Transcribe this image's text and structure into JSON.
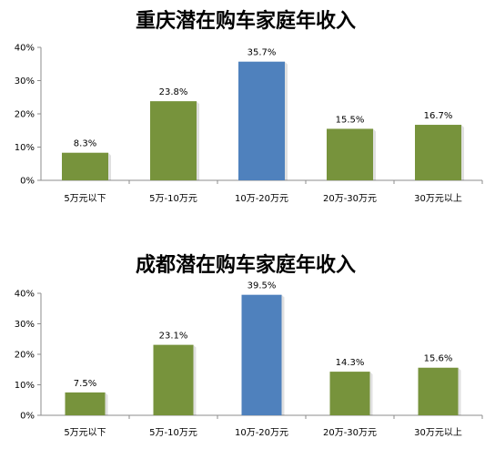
{
  "colors": {
    "green": "#77933c",
    "blue": "#4f81bd"
  },
  "chart_data": [
    {
      "type": "bar",
      "title": "重庆潜在购车家庭年收入",
      "categories": [
        "5万元以下",
        "5万-10万元",
        "10万-20万元",
        "20万-30万元",
        "30万元以上"
      ],
      "values": [
        8.3,
        23.8,
        35.7,
        15.5,
        16.7
      ],
      "data_labels": [
        "8.3%",
        "23.8%",
        "35.7%",
        "15.5%",
        "16.7%"
      ],
      "highlight_index": 2,
      "ylim": [
        0,
        40
      ],
      "yticks": [
        "0%",
        "10%",
        "20%",
        "30%",
        "40%"
      ],
      "xlabel": "",
      "ylabel": "",
      "grid": false
    },
    {
      "type": "bar",
      "title": "成都潜在购车家庭年收入",
      "categories": [
        "5万元以下",
        "5万-10万元",
        "10万-20万元",
        "20万-30万元",
        "30万元以上"
      ],
      "values": [
        7.5,
        23.1,
        39.5,
        14.3,
        15.6
      ],
      "data_labels": [
        "7.5%",
        "23.1%",
        "39.5%",
        "14.3%",
        "15.6%"
      ],
      "highlight_index": 2,
      "ylim": [
        0,
        40
      ],
      "yticks": [
        "0%",
        "10%",
        "20%",
        "30%",
        "40%"
      ],
      "xlabel": "",
      "ylabel": "",
      "grid": false
    }
  ]
}
